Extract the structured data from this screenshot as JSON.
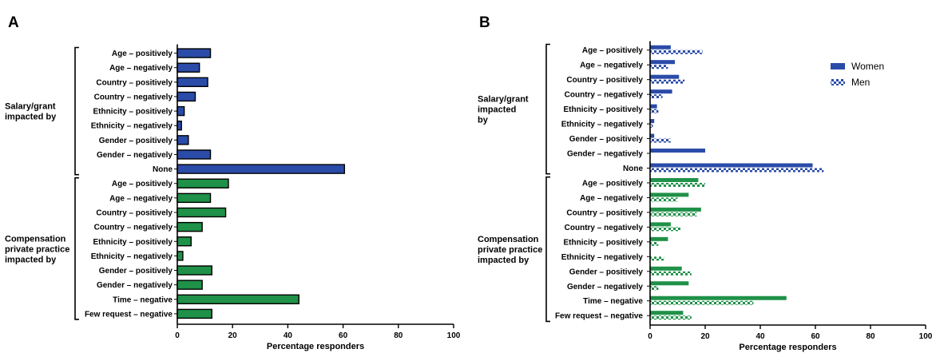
{
  "colors": {
    "salary": "#2a4ba8",
    "compensation": "#1f9148",
    "axis": "#000000"
  },
  "chart_data": [
    {
      "panel": "A",
      "type": "bar",
      "orientation": "horizontal",
      "xlabel": "Percentage responders",
      "xlim": [
        0,
        100
      ],
      "xticks": [
        0,
        20,
        40,
        60,
        80,
        100
      ],
      "groups": [
        {
          "label_lines": [
            "Salary/grant",
            "impacted by"
          ],
          "color_key": "salary",
          "categories": [
            "Age – positively",
            "Age – negatively",
            "Country – positively",
            "Country – negatively",
            "Ethnicity – positively",
            "Ethnicity – negatively",
            "Gender – positively",
            "Gender –  negatively",
            "None"
          ],
          "values": [
            12,
            8,
            11,
            6.5,
            2.5,
            1.5,
            4,
            12,
            60.5
          ]
        },
        {
          "label_lines": [
            "Compensation",
            "private practice",
            "impacted by"
          ],
          "color_key": "compensation",
          "categories": [
            "Age – positively",
            "Age – negatively",
            "Country – positively",
            "Country – negatively",
            "Ethnicity – positively",
            "Ethnicity – negatively",
            "Gender –  positively",
            "Gender –  negatively",
            "Time – negative",
            "Few request – negative"
          ],
          "values": [
            18.5,
            12,
            17.5,
            9,
            5,
            2,
            12.5,
            9,
            44,
            12.5
          ]
        }
      ]
    },
    {
      "panel": "B",
      "type": "bar",
      "orientation": "horizontal",
      "xlabel": "Percentage responders",
      "xlim": [
        0,
        100
      ],
      "xticks": [
        0,
        20,
        40,
        60,
        80,
        100
      ],
      "legend": {
        "position": "top-right",
        "entries": [
          "Women",
          "Men"
        ]
      },
      "groups": [
        {
          "label_lines": [
            "Salary/grant",
            "impacted",
            "by"
          ],
          "color_key": "salary",
          "categories": [
            "Age – positively",
            "Age – negatively",
            "Country – positively",
            "Country – negatively",
            "Ethnicity – positively",
            "Ethnicity – negatively",
            "Gender – positively",
            "Gender –  negatively",
            "None"
          ],
          "series": [
            {
              "name": "Women",
              "values": [
                7.5,
                9,
                10.5,
                8,
                2.5,
                1.5,
                1.5,
                20,
                59
              ]
            },
            {
              "name": "Men",
              "values": [
                19,
                6.5,
                12.5,
                4.5,
                3,
                1,
                7.5,
                0,
                63
              ]
            }
          ]
        },
        {
          "label_lines": [
            "Compensation",
            "private practice",
            "impacted by"
          ],
          "color_key": "compensation",
          "categories": [
            "Age – positively",
            "Age – negatively",
            "Country – positively",
            "Country – negatively",
            "Ethnicity – positively",
            "Ethnicity – negatively",
            "Gender –  positively",
            "Gender –  negatively",
            "Time – negative",
            "Few request – negative"
          ],
          "series": [
            {
              "name": "Women",
              "values": [
                17.5,
                14,
                18.5,
                7.5,
                6.5,
                0,
                11.5,
                14,
                49.5,
                12
              ]
            },
            {
              "name": "Men",
              "values": [
                20,
                10,
                17,
                11,
                3,
                5,
                15,
                3,
                37.5,
                15
              ]
            }
          ]
        }
      ]
    }
  ]
}
